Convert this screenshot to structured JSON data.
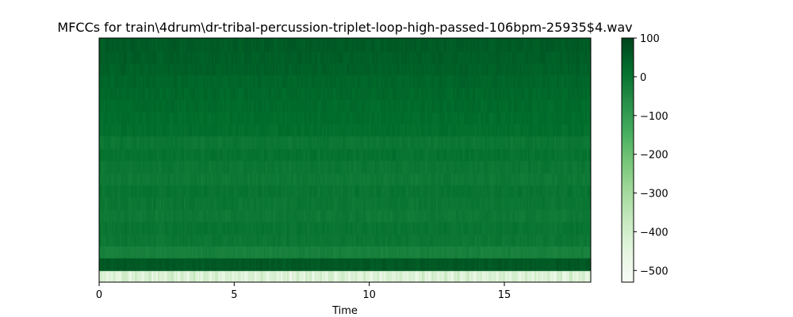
{
  "chart_data": {
    "type": "heatmap",
    "title": "MFCCs for train\\4drum\\dr-tribal-percussion-triplet-loop-high-passed-106bpm-25935$4.wav",
    "xlabel": "Time",
    "ylabel": "",
    "xlim": [
      0,
      18.2
    ],
    "xticks": [
      0,
      5,
      10,
      15
    ],
    "n_mfcc": 20,
    "n_frames": 300,
    "colormap": "Greens",
    "colorbar": {
      "vmin": -530,
      "vmax": 100,
      "ticks": [
        100,
        0,
        -100,
        -200,
        -300,
        -400,
        -500
      ],
      "tick_labels": [
        "100",
        "0",
        "−100",
        "−200",
        "−300",
        "−400",
        "−500"
      ]
    },
    "coefficient_levels": [
      -430,
      60,
      -30,
      -5,
      0,
      -10,
      -5,
      0,
      -10,
      -5,
      5,
      -5,
      15,
      20,
      25,
      30,
      35,
      45,
      50,
      55
    ],
    "grid": false
  }
}
